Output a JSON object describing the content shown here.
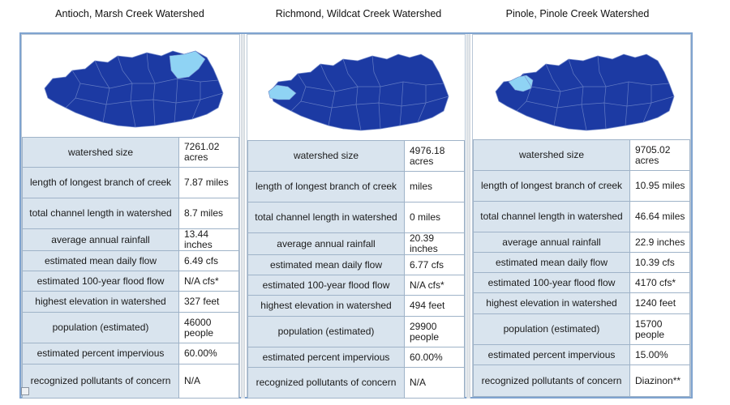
{
  "titles": [
    "Antioch, Marsh Creek Watershed",
    "Richmond, Wildcat Creek Watershed",
    "Pinole, Pinole Creek Watershed"
  ],
  "colors": {
    "county_fill": "#1c3aa3",
    "county_stroke": "#6f86c9",
    "highlight": "#8fd3f4",
    "label_bg": "#d9e4ee",
    "frame": "#7fa3cf"
  },
  "labels": [
    "watershed size",
    "length of longest branch of creek",
    "total channel length in watershed",
    "average annual rainfall",
    "estimated mean daily flow",
    "estimated 100-year flood flow",
    "highest elevation in watershed",
    "population (estimated)",
    "estimated percent impervious",
    "recognized pollutants of concern"
  ],
  "panels": [
    {
      "map_icon": "county-map-highlight-east",
      "values": [
        "7261.02 acres",
        "7.87 miles",
        "8.7 miles",
        "13.44 inches",
        "6.49 cfs",
        "N/A cfs*",
        "327 feet",
        "46000 people",
        "60.00%",
        "N/A"
      ]
    },
    {
      "map_icon": "county-map-highlight-west",
      "values": [
        "4976.18 acres",
        "miles",
        "0 miles",
        "20.39 inches",
        "6.77 cfs",
        "N/A cfs*",
        "494 feet",
        "29900 people",
        "60.00%",
        "N/A"
      ]
    },
    {
      "map_icon": "county-map-highlight-northwest",
      "values": [
        "9705.02 acres",
        "10.95 miles",
        "46.64 miles",
        "22.9 inches",
        "10.39 cfs",
        "4170 cfs*",
        "1240 feet",
        "15700 people",
        "15.00%",
        "Diazinon**"
      ]
    }
  ]
}
